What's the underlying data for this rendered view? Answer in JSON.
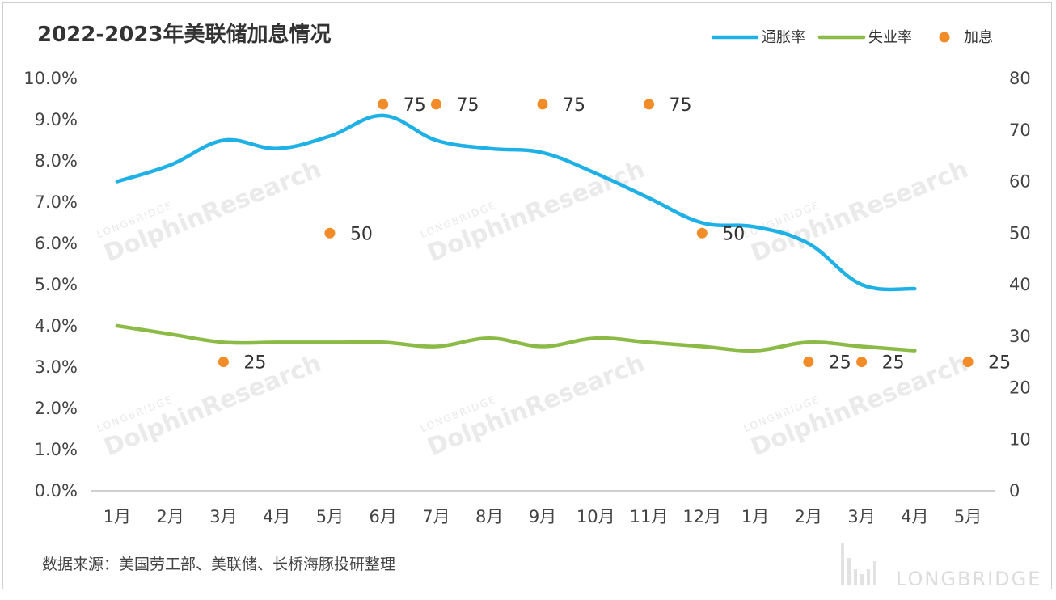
{
  "chart_data": {
    "type": "line",
    "title": "2022-2023年美联储加息情况",
    "categories": [
      "1月",
      "2月",
      "3月",
      "4月",
      "5月",
      "6月",
      "7月",
      "8月",
      "9月",
      "10月",
      "11月",
      "12月",
      "1月",
      "2月",
      "3月",
      "4月",
      "5月"
    ],
    "y_left": {
      "ticks": [
        "0.0%",
        "1.0%",
        "2.0%",
        "3.0%",
        "4.0%",
        "5.0%",
        "6.0%",
        "7.0%",
        "8.0%",
        "9.0%",
        "10.0%"
      ],
      "min": 0,
      "max": 10
    },
    "y_right": {
      "ticks": [
        "0",
        "10",
        "20",
        "30",
        "40",
        "50",
        "60",
        "70",
        "80"
      ],
      "min": 0,
      "max": 80
    },
    "series": [
      {
        "name": "通胀率",
        "axis": "left",
        "color": "#1fb1e6",
        "values": [
          7.5,
          7.9,
          8.5,
          8.3,
          8.6,
          9.1,
          8.5,
          8.3,
          8.2,
          7.7,
          7.1,
          6.5,
          6.4,
          6.0,
          5.0,
          4.9,
          null
        ]
      },
      {
        "name": "失业率",
        "axis": "left",
        "color": "#8bbb46",
        "values": [
          4.0,
          3.8,
          3.6,
          3.6,
          3.6,
          3.6,
          3.5,
          3.7,
          3.5,
          3.7,
          3.6,
          3.5,
          3.4,
          3.6,
          3.5,
          3.4,
          null
        ]
      },
      {
        "name": "加息",
        "axis": "right",
        "type": "scatter",
        "color": "#f28c28",
        "points": [
          {
            "x": 2,
            "y": 25,
            "label": "25"
          },
          {
            "x": 4,
            "y": 50,
            "label": "50"
          },
          {
            "x": 5,
            "y": 75,
            "label": "75"
          },
          {
            "x": 6,
            "y": 75,
            "label": "75"
          },
          {
            "x": 8,
            "y": 75,
            "label": "75"
          },
          {
            "x": 10,
            "y": 75,
            "label": "75"
          },
          {
            "x": 11,
            "y": 50,
            "label": "50"
          },
          {
            "x": 13,
            "y": 25,
            "label": "25"
          },
          {
            "x": 14,
            "y": 25,
            "label": "25"
          },
          {
            "x": 16,
            "y": 25,
            "label": "25"
          }
        ]
      }
    ],
    "legend_position": "top-right",
    "grid": false
  },
  "footer": {
    "source": "数据来源：美国劳工部、美联储、长桥海豚投研整理"
  },
  "watermark": {
    "main": "DolphinResearch",
    "small": "LONGBRIDGE",
    "brand": "LONGBRIDGE"
  }
}
